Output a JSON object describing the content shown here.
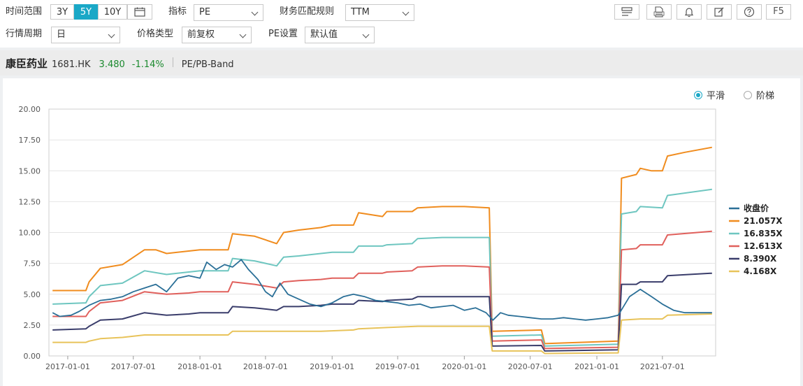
{
  "toolbar": {
    "time_range_label": "时间范围",
    "ranges": [
      "3Y",
      "5Y",
      "10Y"
    ],
    "active_range": "5Y",
    "indicator_label": "指标",
    "indicator_value": "PE",
    "fin_rule_label": "财务匹配规则",
    "fin_rule_value": "TTM",
    "period_label": "行情周期",
    "period_value": "日",
    "price_type_label": "价格类型",
    "price_type_value": "前复权",
    "pe_setting_label": "PE设置",
    "pe_setting_value": "默认值",
    "tools": [
      "layout-icon",
      "xls-icon",
      "bell-icon",
      "edit-icon",
      "help-icon"
    ],
    "f5_label": "F5"
  },
  "stock": {
    "name": "康臣药业",
    "code": "1681.HK",
    "price": "3.480",
    "change": "-1.14%",
    "band_label": "PE/PB-Band"
  },
  "mode": {
    "smooth_label": "平滑",
    "step_label": "阶梯",
    "selected": "smooth"
  },
  "chart_data": {
    "type": "line",
    "ylim": [
      0,
      20
    ],
    "yticks": [
      "0.00",
      "2.50",
      "5.00",
      "7.50",
      "10.00",
      "12.50",
      "15.00",
      "17.50",
      "20.00"
    ],
    "xticks": [
      "2017-01-01",
      "2017-07-01",
      "2018-01-01",
      "2018-07-01",
      "2019-01-01",
      "2019-07-01",
      "2020-01-01",
      "2020-07-01",
      "2021-01-01",
      "2021-07-01"
    ],
    "xlim": [
      "2016-11-10",
      "2021-11-25"
    ],
    "series": [
      {
        "name": "收盘价",
        "color": "#2a6f97",
        "points": [
          [
            "2016-11-20",
            3.5
          ],
          [
            "2016-12-10",
            3.2
          ],
          [
            "2017-01-10",
            3.3
          ],
          [
            "2017-02-01",
            3.6
          ],
          [
            "2017-03-01",
            4.1
          ],
          [
            "2017-04-01",
            4.5
          ],
          [
            "2017-05-01",
            4.6
          ],
          [
            "2017-06-01",
            4.8
          ],
          [
            "2017-07-01",
            5.2
          ],
          [
            "2017-08-01",
            5.5
          ],
          [
            "2017-09-01",
            5.8
          ],
          [
            "2017-10-01",
            5.2
          ],
          [
            "2017-11-01",
            6.3
          ],
          [
            "2017-12-01",
            6.5
          ],
          [
            "2018-01-01",
            6.3
          ],
          [
            "2018-01-20",
            7.6
          ],
          [
            "2018-02-15",
            7.0
          ],
          [
            "2018-03-10",
            7.4
          ],
          [
            "2018-04-01",
            7.2
          ],
          [
            "2018-04-25",
            7.8
          ],
          [
            "2018-05-15",
            7.0
          ],
          [
            "2018-06-10",
            6.2
          ],
          [
            "2018-07-01",
            5.2
          ],
          [
            "2018-07-20",
            4.8
          ],
          [
            "2018-08-10",
            5.9
          ],
          [
            "2018-09-01",
            5.0
          ],
          [
            "2018-10-01",
            4.6
          ],
          [
            "2018-11-01",
            4.2
          ],
          [
            "2018-12-01",
            4.0
          ],
          [
            "2019-01-01",
            4.3
          ],
          [
            "2019-02-01",
            4.8
          ],
          [
            "2019-03-01",
            5.0
          ],
          [
            "2019-04-01",
            4.8
          ],
          [
            "2019-05-01",
            4.5
          ],
          [
            "2019-06-01",
            4.4
          ],
          [
            "2019-07-01",
            4.3
          ],
          [
            "2019-08-01",
            4.1
          ],
          [
            "2019-09-01",
            4.2
          ],
          [
            "2019-10-01",
            3.9
          ],
          [
            "2019-11-01",
            4.0
          ],
          [
            "2019-12-01",
            4.1
          ],
          [
            "2020-01-01",
            3.7
          ],
          [
            "2020-02-01",
            3.9
          ],
          [
            "2020-03-01",
            3.5
          ],
          [
            "2020-03-20",
            2.9
          ],
          [
            "2020-04-10",
            3.5
          ],
          [
            "2020-05-01",
            3.3
          ],
          [
            "2020-06-01",
            3.2
          ],
          [
            "2020-07-01",
            3.1
          ],
          [
            "2020-08-01",
            3.0
          ],
          [
            "2020-09-01",
            3.0
          ],
          [
            "2020-10-01",
            3.1
          ],
          [
            "2020-11-01",
            3.0
          ],
          [
            "2020-12-01",
            2.9
          ],
          [
            "2021-01-01",
            3.0
          ],
          [
            "2021-02-01",
            3.1
          ],
          [
            "2021-03-01",
            3.3
          ],
          [
            "2021-04-01",
            4.8
          ],
          [
            "2021-05-01",
            5.4
          ],
          [
            "2021-06-01",
            4.8
          ],
          [
            "2021-07-01",
            4.2
          ],
          [
            "2021-08-01",
            3.7
          ],
          [
            "2021-09-01",
            3.5
          ],
          [
            "2021-10-01",
            3.5
          ],
          [
            "2021-11-15",
            3.5
          ]
        ]
      },
      {
        "name": "21.057X",
        "color": "#f08c1e",
        "points": [
          [
            "2016-11-20",
            5.3
          ],
          [
            "2017-02-20",
            5.3
          ],
          [
            "2017-03-01",
            6.0
          ],
          [
            "2017-04-01",
            7.1
          ],
          [
            "2017-06-01",
            7.4
          ],
          [
            "2017-08-01",
            8.6
          ],
          [
            "2017-09-01",
            8.6
          ],
          [
            "2017-10-01",
            8.3
          ],
          [
            "2017-12-01",
            8.5
          ],
          [
            "2018-01-01",
            8.6
          ],
          [
            "2018-03-20",
            8.6
          ],
          [
            "2018-04-01",
            9.9
          ],
          [
            "2018-06-01",
            9.7
          ],
          [
            "2018-08-01",
            9.1
          ],
          [
            "2018-08-20",
            10.0
          ],
          [
            "2018-10-01",
            10.2
          ],
          [
            "2018-12-01",
            10.4
          ],
          [
            "2019-01-01",
            10.6
          ],
          [
            "2019-03-01",
            10.6
          ],
          [
            "2019-03-15",
            11.6
          ],
          [
            "2019-05-20",
            11.3
          ],
          [
            "2019-06-01",
            11.7
          ],
          [
            "2019-08-10",
            11.7
          ],
          [
            "2019-08-25",
            12.0
          ],
          [
            "2019-11-01",
            12.1
          ],
          [
            "2020-01-01",
            12.1
          ],
          [
            "2020-03-10",
            12.0
          ],
          [
            "2020-03-18",
            2.0
          ],
          [
            "2020-08-01",
            2.1
          ],
          [
            "2020-08-10",
            1.0
          ],
          [
            "2021-03-01",
            1.2
          ],
          [
            "2021-03-10",
            14.4
          ],
          [
            "2021-04-20",
            14.7
          ],
          [
            "2021-05-01",
            15.2
          ],
          [
            "2021-06-01",
            15.0
          ],
          [
            "2021-07-01",
            15.0
          ],
          [
            "2021-07-15",
            16.2
          ],
          [
            "2021-09-01",
            16.5
          ],
          [
            "2021-11-15",
            16.9
          ]
        ]
      },
      {
        "name": "16.835X",
        "color": "#6ec6c0",
        "points": [
          [
            "2016-11-20",
            4.2
          ],
          [
            "2017-02-20",
            4.3
          ],
          [
            "2017-03-01",
            4.8
          ],
          [
            "2017-04-01",
            5.7
          ],
          [
            "2017-06-01",
            5.9
          ],
          [
            "2017-08-01",
            6.9
          ],
          [
            "2017-10-01",
            6.6
          ],
          [
            "2017-12-01",
            6.8
          ],
          [
            "2018-01-01",
            6.9
          ],
          [
            "2018-03-20",
            6.9
          ],
          [
            "2018-04-01",
            7.9
          ],
          [
            "2018-06-01",
            7.7
          ],
          [
            "2018-08-01",
            7.3
          ],
          [
            "2018-08-20",
            8.0
          ],
          [
            "2018-10-01",
            8.1
          ],
          [
            "2018-12-01",
            8.3
          ],
          [
            "2019-01-01",
            8.4
          ],
          [
            "2019-03-01",
            8.4
          ],
          [
            "2019-03-15",
            8.9
          ],
          [
            "2019-05-20",
            8.9
          ],
          [
            "2019-06-01",
            9.0
          ],
          [
            "2019-08-10",
            9.1
          ],
          [
            "2019-08-25",
            9.5
          ],
          [
            "2019-11-01",
            9.6
          ],
          [
            "2020-01-01",
            9.6
          ],
          [
            "2020-03-10",
            9.6
          ],
          [
            "2020-03-18",
            1.6
          ],
          [
            "2020-08-01",
            1.7
          ],
          [
            "2020-08-10",
            0.8
          ],
          [
            "2021-03-01",
            0.95
          ],
          [
            "2021-03-10",
            11.5
          ],
          [
            "2021-04-20",
            11.7
          ],
          [
            "2021-05-01",
            12.1
          ],
          [
            "2021-07-01",
            12.0
          ],
          [
            "2021-07-15",
            13.0
          ],
          [
            "2021-11-15",
            13.5
          ]
        ]
      },
      {
        "name": "12.613X",
        "color": "#e0605c",
        "points": [
          [
            "2016-11-20",
            3.2
          ],
          [
            "2017-02-20",
            3.2
          ],
          [
            "2017-03-01",
            3.6
          ],
          [
            "2017-04-01",
            4.3
          ],
          [
            "2017-06-01",
            4.5
          ],
          [
            "2017-08-01",
            5.2
          ],
          [
            "2017-10-01",
            5.0
          ],
          [
            "2017-12-01",
            5.1
          ],
          [
            "2018-01-01",
            5.2
          ],
          [
            "2018-03-20",
            5.2
          ],
          [
            "2018-04-01",
            6.0
          ],
          [
            "2018-06-01",
            5.8
          ],
          [
            "2018-08-01",
            5.5
          ],
          [
            "2018-08-20",
            6.0
          ],
          [
            "2018-10-01",
            6.1
          ],
          [
            "2018-12-01",
            6.2
          ],
          [
            "2019-01-01",
            6.3
          ],
          [
            "2019-03-01",
            6.3
          ],
          [
            "2019-03-15",
            6.7
          ],
          [
            "2019-05-20",
            6.7
          ],
          [
            "2019-06-01",
            6.8
          ],
          [
            "2019-08-10",
            6.9
          ],
          [
            "2019-08-25",
            7.2
          ],
          [
            "2019-11-01",
            7.3
          ],
          [
            "2020-01-01",
            7.3
          ],
          [
            "2020-03-10",
            7.2
          ],
          [
            "2020-03-18",
            1.2
          ],
          [
            "2020-08-01",
            1.3
          ],
          [
            "2020-08-10",
            0.6
          ],
          [
            "2021-03-01",
            0.7
          ],
          [
            "2021-03-10",
            8.6
          ],
          [
            "2021-04-20",
            8.7
          ],
          [
            "2021-05-01",
            9.0
          ],
          [
            "2021-07-01",
            9.0
          ],
          [
            "2021-07-15",
            9.8
          ],
          [
            "2021-11-15",
            10.1
          ]
        ]
      },
      {
        "name": "8.390X",
        "color": "#3a3d6b",
        "points": [
          [
            "2016-11-20",
            2.1
          ],
          [
            "2017-02-20",
            2.2
          ],
          [
            "2017-03-01",
            2.4
          ],
          [
            "2017-04-01",
            2.9
          ],
          [
            "2017-06-01",
            3.0
          ],
          [
            "2017-08-01",
            3.5
          ],
          [
            "2017-10-01",
            3.3
          ],
          [
            "2017-12-01",
            3.4
          ],
          [
            "2018-01-01",
            3.5
          ],
          [
            "2018-03-20",
            3.5
          ],
          [
            "2018-04-01",
            4.0
          ],
          [
            "2018-06-01",
            3.9
          ],
          [
            "2018-08-01",
            3.7
          ],
          [
            "2018-08-20",
            4.0
          ],
          [
            "2018-10-01",
            4.0
          ],
          [
            "2018-12-01",
            4.1
          ],
          [
            "2019-01-01",
            4.2
          ],
          [
            "2019-03-01",
            4.2
          ],
          [
            "2019-03-15",
            4.5
          ],
          [
            "2019-05-20",
            4.4
          ],
          [
            "2019-06-01",
            4.5
          ],
          [
            "2019-08-10",
            4.6
          ],
          [
            "2019-08-25",
            4.8
          ],
          [
            "2019-11-01",
            4.8
          ],
          [
            "2020-01-01",
            4.8
          ],
          [
            "2020-03-10",
            4.8
          ],
          [
            "2020-03-18",
            0.8
          ],
          [
            "2020-08-01",
            0.85
          ],
          [
            "2020-08-10",
            0.4
          ],
          [
            "2021-03-01",
            0.5
          ],
          [
            "2021-03-10",
            5.8
          ],
          [
            "2021-04-20",
            5.8
          ],
          [
            "2021-05-01",
            6.0
          ],
          [
            "2021-07-01",
            6.0
          ],
          [
            "2021-07-15",
            6.5
          ],
          [
            "2021-11-15",
            6.7
          ]
        ]
      },
      {
        "name": "4.168X",
        "color": "#e8c35a",
        "points": [
          [
            "2016-11-20",
            1.1
          ],
          [
            "2017-02-20",
            1.1
          ],
          [
            "2017-03-01",
            1.2
          ],
          [
            "2017-04-01",
            1.4
          ],
          [
            "2017-06-01",
            1.5
          ],
          [
            "2017-08-01",
            1.7
          ],
          [
            "2017-10-01",
            1.7
          ],
          [
            "2017-12-01",
            1.7
          ],
          [
            "2018-01-01",
            1.7
          ],
          [
            "2018-03-20",
            1.7
          ],
          [
            "2018-04-01",
            2.0
          ],
          [
            "2018-08-20",
            2.0
          ],
          [
            "2018-12-01",
            2.0
          ],
          [
            "2019-03-01",
            2.1
          ],
          [
            "2019-03-15",
            2.2
          ],
          [
            "2019-06-01",
            2.3
          ],
          [
            "2019-08-25",
            2.4
          ],
          [
            "2020-01-01",
            2.4
          ],
          [
            "2020-03-10",
            2.4
          ],
          [
            "2020-03-18",
            0.4
          ],
          [
            "2020-08-01",
            0.4
          ],
          [
            "2020-08-10",
            0.2
          ],
          [
            "2021-03-01",
            0.25
          ],
          [
            "2021-03-10",
            2.9
          ],
          [
            "2021-05-01",
            3.0
          ],
          [
            "2021-07-01",
            3.0
          ],
          [
            "2021-07-15",
            3.3
          ],
          [
            "2021-11-15",
            3.4
          ]
        ]
      }
    ]
  }
}
